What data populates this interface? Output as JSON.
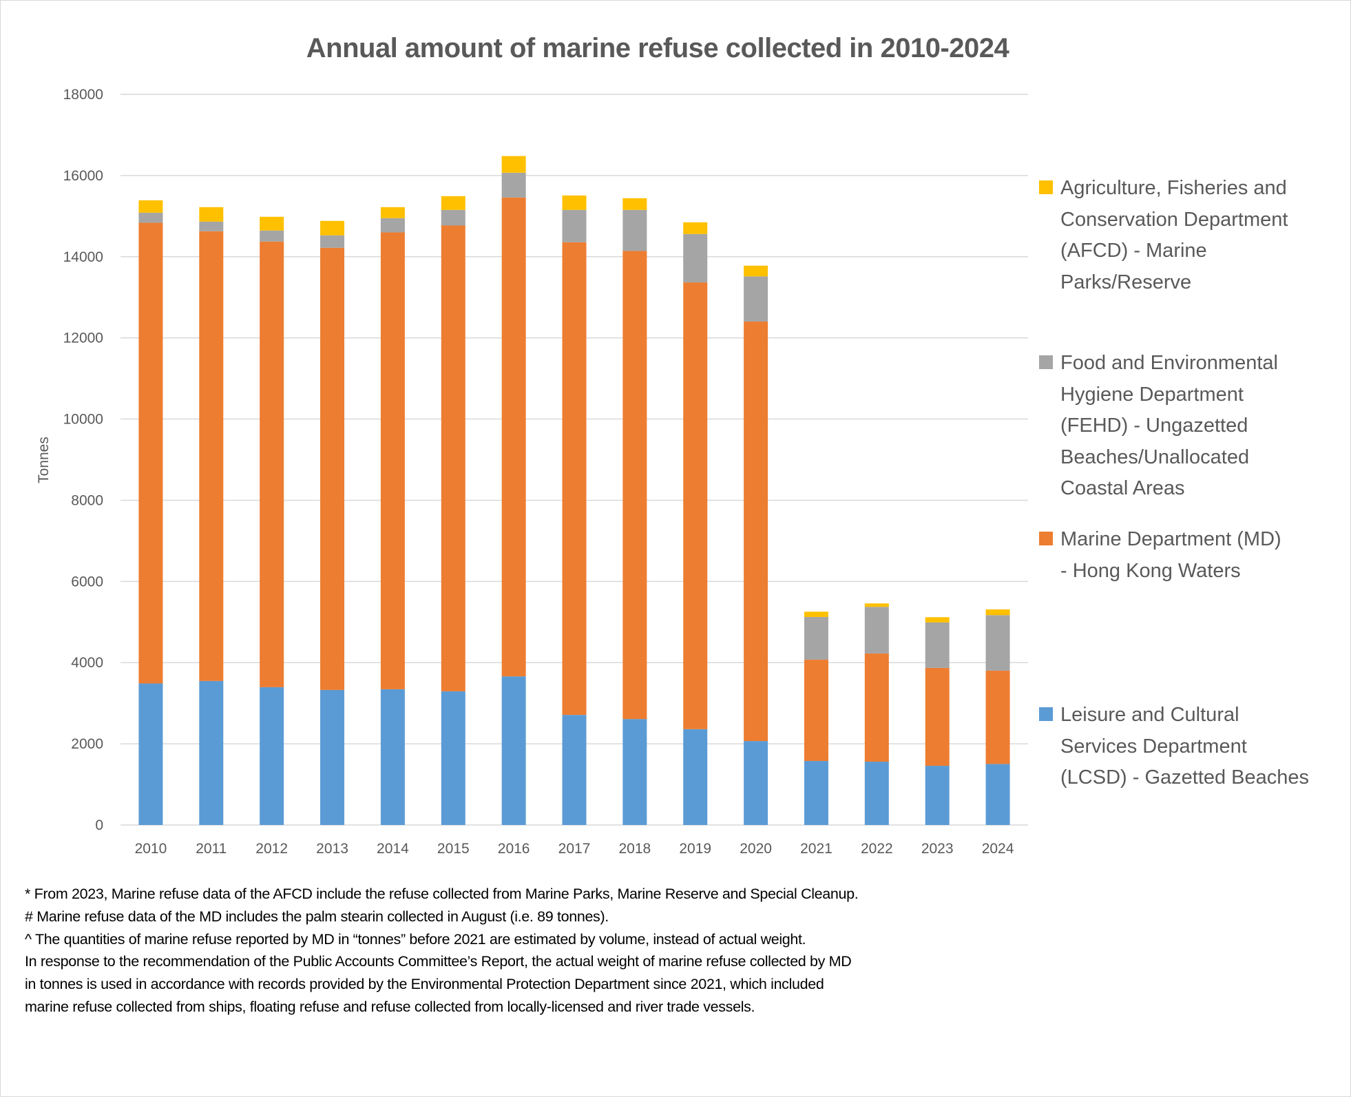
{
  "chart_data": {
    "type": "bar",
    "stacked": true,
    "title": "Annual amount of marine refuse collected in 2010-2024",
    "xlabel": "",
    "ylabel": "Tonnes",
    "ylim": [
      0,
      18000
    ],
    "yticks": [
      0,
      2000,
      4000,
      6000,
      8000,
      10000,
      12000,
      14000,
      16000,
      18000
    ],
    "grid": "horizontal",
    "legend_position": "right",
    "categories": [
      "2010",
      "2011",
      "2012",
      "2013",
      "2014",
      "2015",
      "2016",
      "2017",
      "2018",
      "2019",
      "2020",
      "2021",
      "2022",
      "2023",
      "2024"
    ],
    "series": [
      {
        "key": "lcsd",
        "name": "Leisure and Cultural Services Department (LCSD) - Gazetted Beaches",
        "color": "#5b9bd5",
        "values": [
          3487,
          3548,
          3395,
          3327,
          3344,
          3293,
          3661,
          2712,
          2610,
          2361,
          2068,
          1577,
          1560,
          1458,
          1503
        ]
      },
      {
        "key": "md",
        "name": "Marine Department (MD) - Hong Kong Waters",
        "color": "#ed7d31",
        "values": [
          11350,
          11080,
          10979,
          10894,
          11255,
          11475,
          11797,
          11645,
          11531,
          11006,
          10334,
          2496,
          2666,
          2412,
          2299
        ]
      },
      {
        "key": "fehd",
        "name": "Food and Environmental Hygiene Department (FEHD) - Ungazetted Beaches/Unallocated Coastal Areas",
        "color": "#a5a5a5",
        "values": [
          248,
          237,
          271,
          305,
          351,
          385,
          611,
          796,
          1012,
          1193,
          1113,
          1051,
          1147,
          1119,
          1368
        ]
      },
      {
        "key": "afcd",
        "name": "Agriculture, Fisheries and Conservation Department (AFCD) - Marine Parks/Reserve",
        "color": "#ffc000",
        "values": [
          305,
          356,
          339,
          356,
          271,
          339,
          411,
          356,
          288,
          288,
          265,
          131,
          85,
          130,
          141
        ]
      }
    ],
    "totals": [
      15390,
      15221,
      14984,
      14882,
      15221,
      15492,
      16480,
      15509,
      15441,
      14848,
      13780,
      5255,
      5458,
      5119,
      5311
    ]
  },
  "legend": [
    {
      "key": "afcd",
      "lines": [
        "Agriculture, Fisheries and",
        "Conservation Department",
        "(AFCD) - Marine",
        "Parks/Reserve"
      ]
    },
    {
      "key": "fehd",
      "lines": [
        "Food and Environmental",
        "Hygiene Department",
        "(FEHD) - Ungazetted",
        "Beaches/Unallocated",
        "Coastal Areas"
      ]
    },
    {
      "key": "md",
      "lines": [
        "Marine Department (MD)",
        "- Hong Kong Waters"
      ]
    },
    {
      "key": "lcsd",
      "lines": [
        "Leisure and Cultural",
        "Services Department",
        "(LCSD) - Gazetted Beaches"
      ]
    }
  ],
  "footnotes": [
    "* From 2023, Marine refuse data of the AFCD include the refuse collected from Marine Parks, Marine Reserve and Special Cleanup.",
    "# Marine refuse data of the MD includes the palm stearin collected in August  (i.e. 89 tonnes).",
    "^ The quantities of marine refuse reported by MD in “tonnes” before 2021 are estimated by volume, instead of actual weight.",
    "In response to the recommendation of the Public Accounts Committee’s Report, the actual weight of marine refuse collected by MD",
    "in tonnes is used in accordance with records provided by the Environmental Protection Department since 2021, which included",
    "marine refuse collected from ships, floating refuse and refuse collected from locally-licensed and river trade vessels."
  ]
}
